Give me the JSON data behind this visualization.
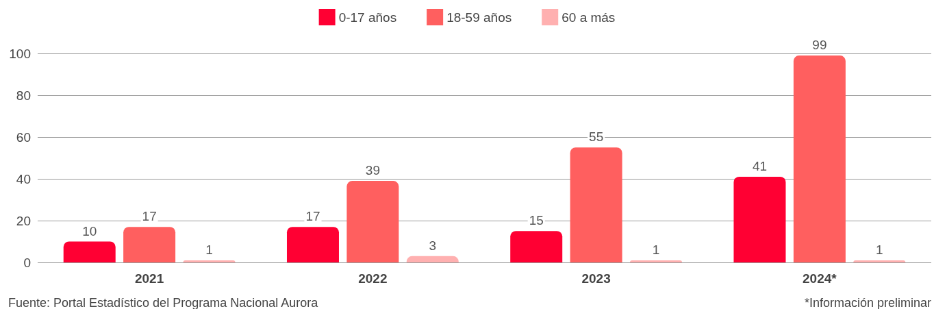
{
  "chart_data": {
    "type": "bar",
    "categories": [
      "2021",
      "2022",
      "2023",
      "2024*"
    ],
    "series": [
      {
        "name": "0-17 años",
        "color": "#ff0033",
        "values": [
          10,
          17,
          15,
          41
        ]
      },
      {
        "name": "18-59 años",
        "color": "#ff5f5f",
        "values": [
          17,
          39,
          55,
          99
        ]
      },
      {
        "name": "60 a más",
        "color": "#ffb0b0",
        "values": [
          1,
          3,
          1,
          1
        ]
      }
    ],
    "ylim": [
      0,
      100
    ],
    "yticks": [
      0,
      20,
      40,
      60,
      80,
      100
    ],
    "grid": "y",
    "legend": "top",
    "data_labels": true,
    "annotations": [
      "Fuente: Portal Estadístico del Programa Nacional Aurora",
      "*Información preliminar"
    ]
  }
}
